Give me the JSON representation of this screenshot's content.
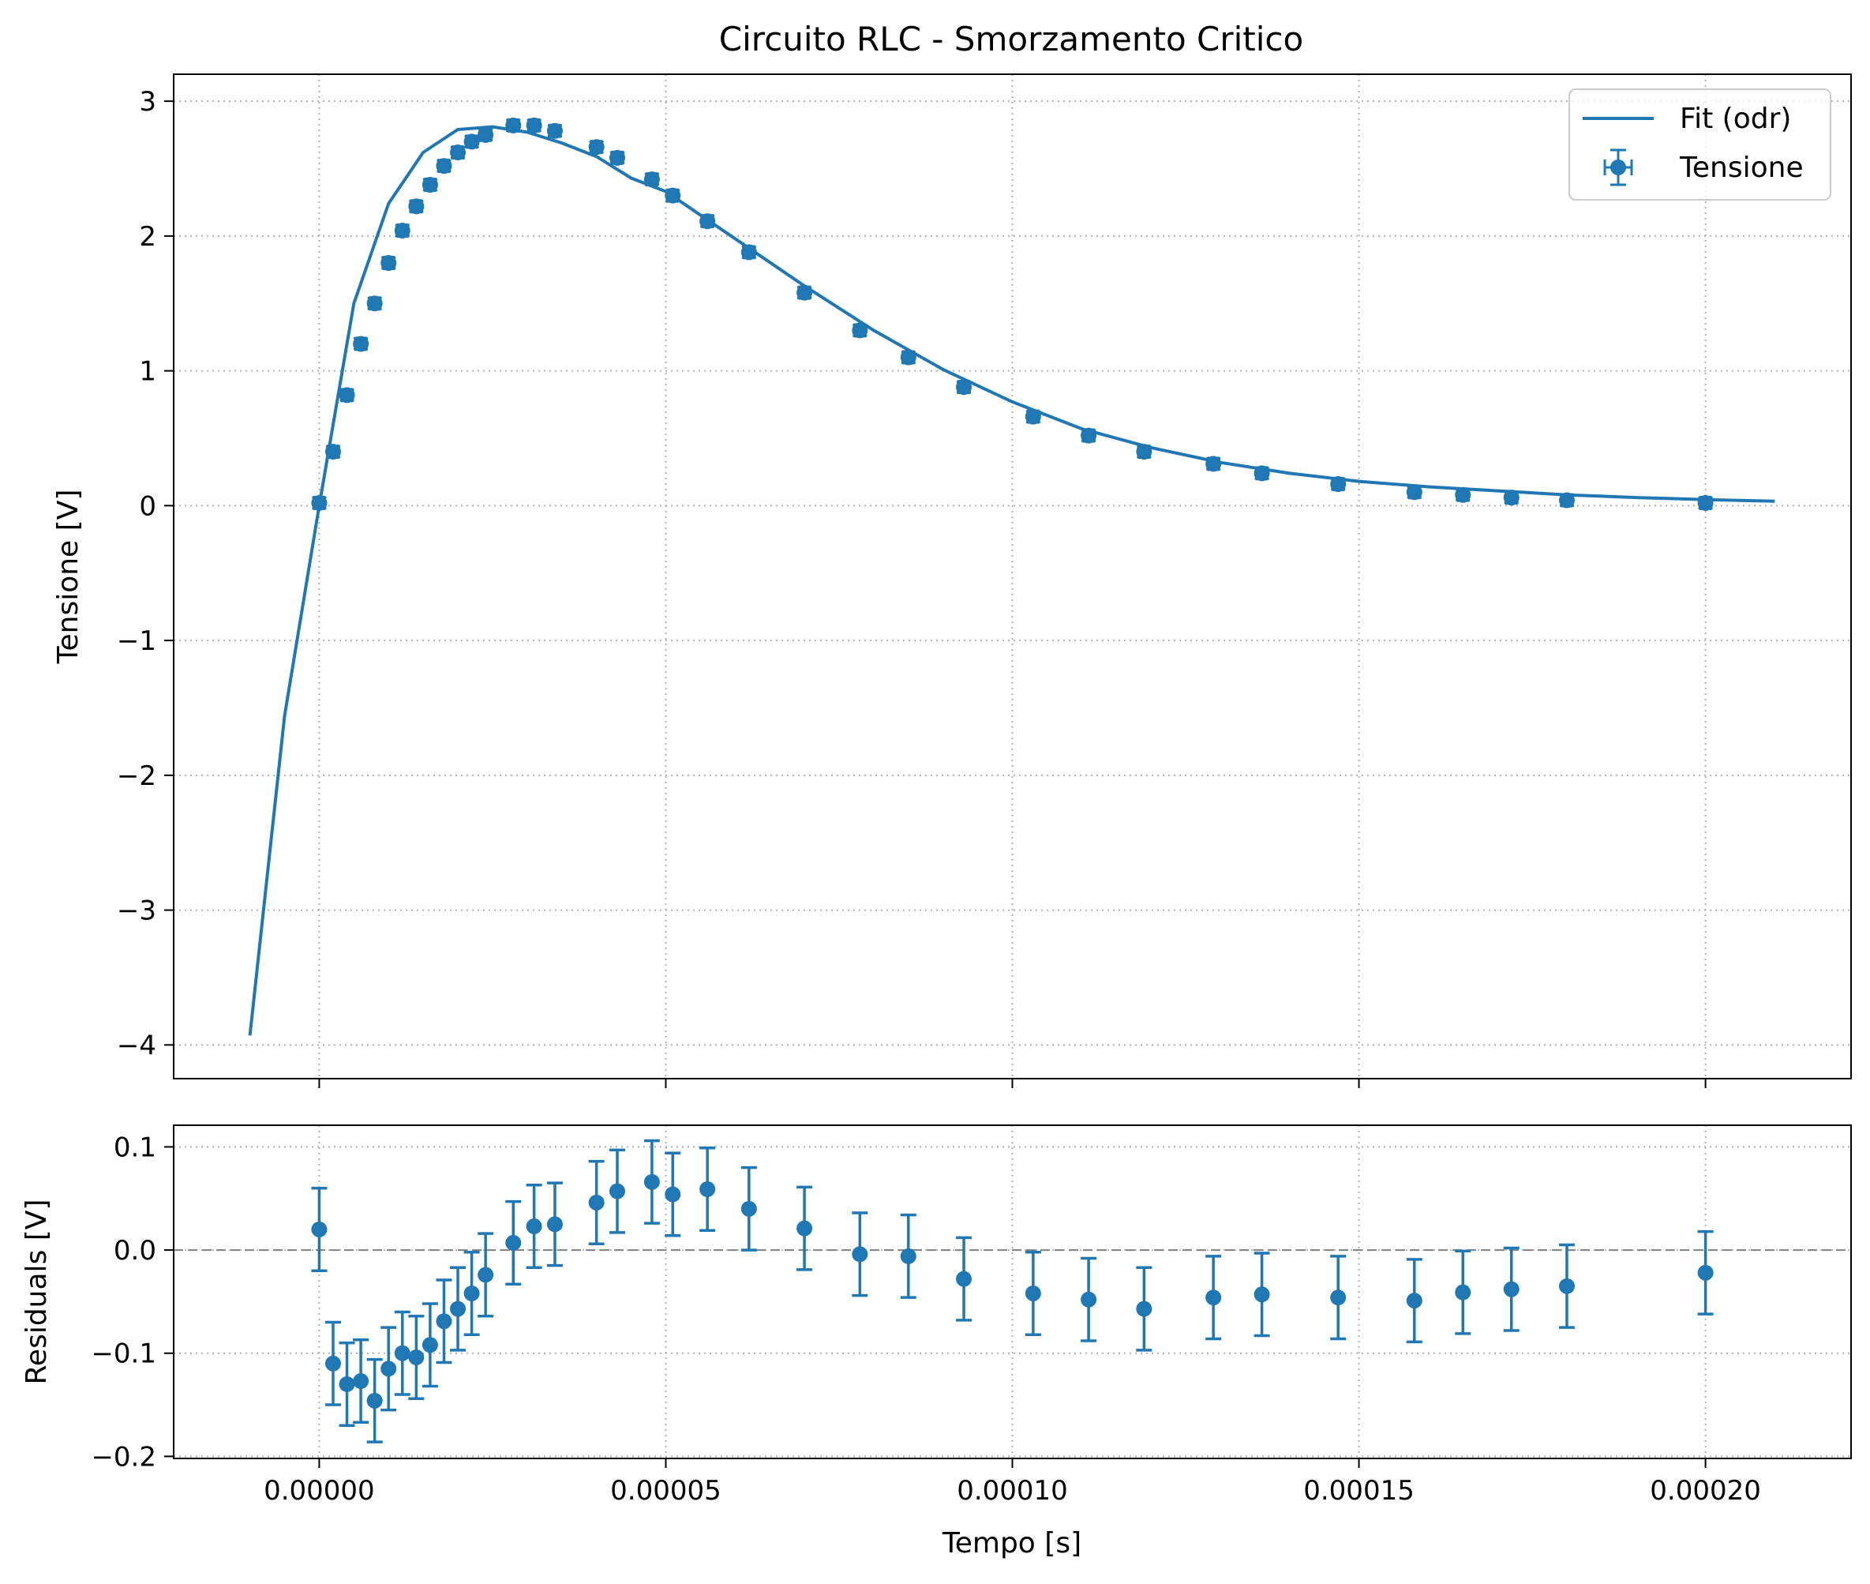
{
  "chart_data": [
    {
      "type": "scatter",
      "title": "Circuito RLC - Smorzamento Critico",
      "xlabel": "",
      "ylabel": "Tensione [V]",
      "xlim": [
        -2.1e-05,
        0.000221
      ],
      "ylim": [
        -4.25,
        3.2
      ],
      "x_ticks": [
        0.0,
        5e-05,
        0.0001,
        0.00015,
        0.0002
      ],
      "y_ticks": [
        -4,
        -3,
        -2,
        -1,
        0,
        1,
        2,
        3
      ],
      "y_tick_labels": [
        "−4",
        "−3",
        "−2",
        "−1",
        "0",
        "1",
        "2",
        "3"
      ],
      "grid": true,
      "legend_position": "top-right",
      "series": [
        {
          "name": "Fit (odr)",
          "kind": "line",
          "color": "#1f77b4",
          "model": "critically damped response",
          "x": [
            -1e-05,
            -5e-06,
            0.0,
            5e-06,
            1e-05,
            1.5e-05,
            2e-05,
            2.5e-05,
            3e-05,
            3.5e-05,
            4e-05,
            4.5e-05,
            5e-05,
            6e-05,
            7e-05,
            8e-05,
            9e-05,
            0.0001,
            0.00011,
            0.00012,
            0.00013,
            0.00014,
            0.00015,
            0.00016,
            0.00017,
            0.00018,
            0.00019,
            0.0002,
            0.00021
          ],
          "y": [
            -3.93,
            -1.56,
            0.0,
            1.5,
            2.24,
            2.62,
            2.79,
            2.81,
            2.77,
            2.69,
            2.59,
            2.43,
            2.33,
            1.98,
            1.63,
            1.3,
            1.01,
            0.77,
            0.57,
            0.43,
            0.32,
            0.24,
            0.18,
            0.14,
            0.11,
            0.08,
            0.06,
            0.045,
            0.033
          ]
        },
        {
          "name": "Tensione",
          "kind": "errorbar",
          "color": "#1f77b4",
          "x": [
            0.0,
            2e-06,
            4e-06,
            6e-06,
            8e-06,
            1e-05,
            1.2e-05,
            1.4e-05,
            1.6e-05,
            1.8e-05,
            2e-05,
            2.2e-05,
            2.4e-05,
            2.8e-05,
            3.1e-05,
            3.4e-05,
            4e-05,
            4.3e-05,
            4.8e-05,
            5.1e-05,
            5.6e-05,
            6.2e-05,
            7e-05,
            7.8e-05,
            8.5e-05,
            9.3e-05,
            0.000103,
            0.000111,
            0.000119,
            0.000129,
            0.000136,
            0.000147,
            0.000158,
            0.000165,
            0.000172,
            0.00018,
            0.0002
          ],
          "y": [
            0.02,
            0.4,
            0.82,
            1.2,
            1.5,
            1.8,
            2.04,
            2.22,
            2.38,
            2.52,
            2.62,
            2.7,
            2.75,
            2.82,
            2.82,
            2.78,
            2.66,
            2.58,
            2.42,
            2.3,
            2.11,
            1.88,
            1.58,
            1.3,
            1.1,
            0.88,
            0.66,
            0.52,
            0.4,
            0.31,
            0.24,
            0.16,
            0.1,
            0.08,
            0.06,
            0.04,
            0.02
          ],
          "yerr": 0.04,
          "xerr": 7e-07
        }
      ]
    },
    {
      "type": "scatter",
      "title": "",
      "xlabel": "Tempo [s]",
      "ylabel": "Residuals [V]",
      "xlim": [
        -2.1e-05,
        0.000221
      ],
      "ylim": [
        -0.202,
        0.121
      ],
      "x_ticks": [
        0.0,
        5e-05,
        0.0001,
        0.00015,
        0.0002
      ],
      "x_tick_labels": [
        "0.00000",
        "0.00005",
        "0.00010",
        "0.00015",
        "0.00020"
      ],
      "y_ticks": [
        -0.2,
        -0.1,
        0.0,
        0.1
      ],
      "y_tick_labels": [
        "−0.2",
        "−0.1",
        "0.0",
        "0.1"
      ],
      "grid": true,
      "reference_line": 0.0,
      "series": [
        {
          "kind": "errorbar",
          "color": "#1f77b4",
          "x": [
            0.0,
            2e-06,
            4e-06,
            6e-06,
            8e-06,
            1e-05,
            1.2e-05,
            1.4e-05,
            1.6e-05,
            1.8e-05,
            2e-05,
            2.2e-05,
            2.4e-05,
            2.8e-05,
            3.1e-05,
            3.4e-05,
            4e-05,
            4.3e-05,
            4.8e-05,
            5.1e-05,
            5.6e-05,
            6.2e-05,
            7e-05,
            7.8e-05,
            8.5e-05,
            9.3e-05,
            0.000103,
            0.000111,
            0.000119,
            0.000129,
            0.000136,
            0.000147,
            0.000158,
            0.000165,
            0.000172,
            0.00018,
            0.0002
          ],
          "y": [
            0.02,
            -0.11,
            -0.13,
            -0.127,
            -0.146,
            -0.115,
            -0.1,
            -0.104,
            -0.092,
            -0.069,
            -0.057,
            -0.042,
            -0.024,
            0.007,
            0.023,
            0.025,
            0.046,
            0.057,
            0.066,
            0.054,
            0.059,
            0.04,
            0.021,
            -0.004,
            -0.006,
            -0.028,
            -0.042,
            -0.048,
            -0.057,
            -0.046,
            -0.043,
            -0.046,
            -0.049,
            -0.041,
            -0.038,
            -0.035,
            -0.022
          ],
          "yerr": 0.04
        }
      ]
    }
  ]
}
